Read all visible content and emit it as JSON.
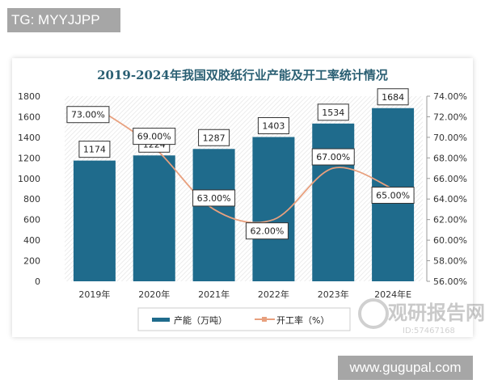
{
  "overlay": {
    "tg_label": "TG: MYYJJPP",
    "site_label": "www.gugupal.com",
    "watermark": "观研报告网",
    "watermark_id": "ID:57467168"
  },
  "colors": {
    "bar": "#1f6b8c",
    "line": "#e8a07e",
    "title": "#2a5f73"
  },
  "chart_data": {
    "type": "bar+line",
    "title": "2019-2024年我国双胶纸行业产能及开工率统计情况",
    "categories": [
      "2019年",
      "2020年",
      "2021年",
      "2022年",
      "2023年",
      "2024年E"
    ],
    "series": [
      {
        "name": "产能（万吨）",
        "type": "bar",
        "axis": "left",
        "values": [
          1174,
          1224,
          1287,
          1403,
          1534,
          1684
        ],
        "labels": [
          "1174",
          "1224",
          "1287",
          "1403",
          "1534",
          "1684"
        ]
      },
      {
        "name": "开工率（%）",
        "type": "line",
        "axis": "right",
        "values": [
          73,
          69,
          63,
          62,
          67,
          65
        ],
        "labels": [
          "73.00%",
          "69.00%",
          "63.00%",
          "62.00%",
          "67.00%",
          "65.00%"
        ]
      }
    ],
    "left_axis": {
      "ylim": [
        0,
        1800
      ],
      "ticks": [
        "0",
        "200",
        "400",
        "600",
        "800",
        "1000",
        "1200",
        "1400",
        "1600",
        "1800"
      ]
    },
    "right_axis": {
      "ylim": [
        56,
        74
      ],
      "ticks": [
        "56.00%",
        "58.00%",
        "60.00%",
        "62.00%",
        "64.00%",
        "66.00%",
        "68.00%",
        "70.00%",
        "72.00%",
        "74.00%"
      ]
    },
    "legend": "bottom"
  }
}
